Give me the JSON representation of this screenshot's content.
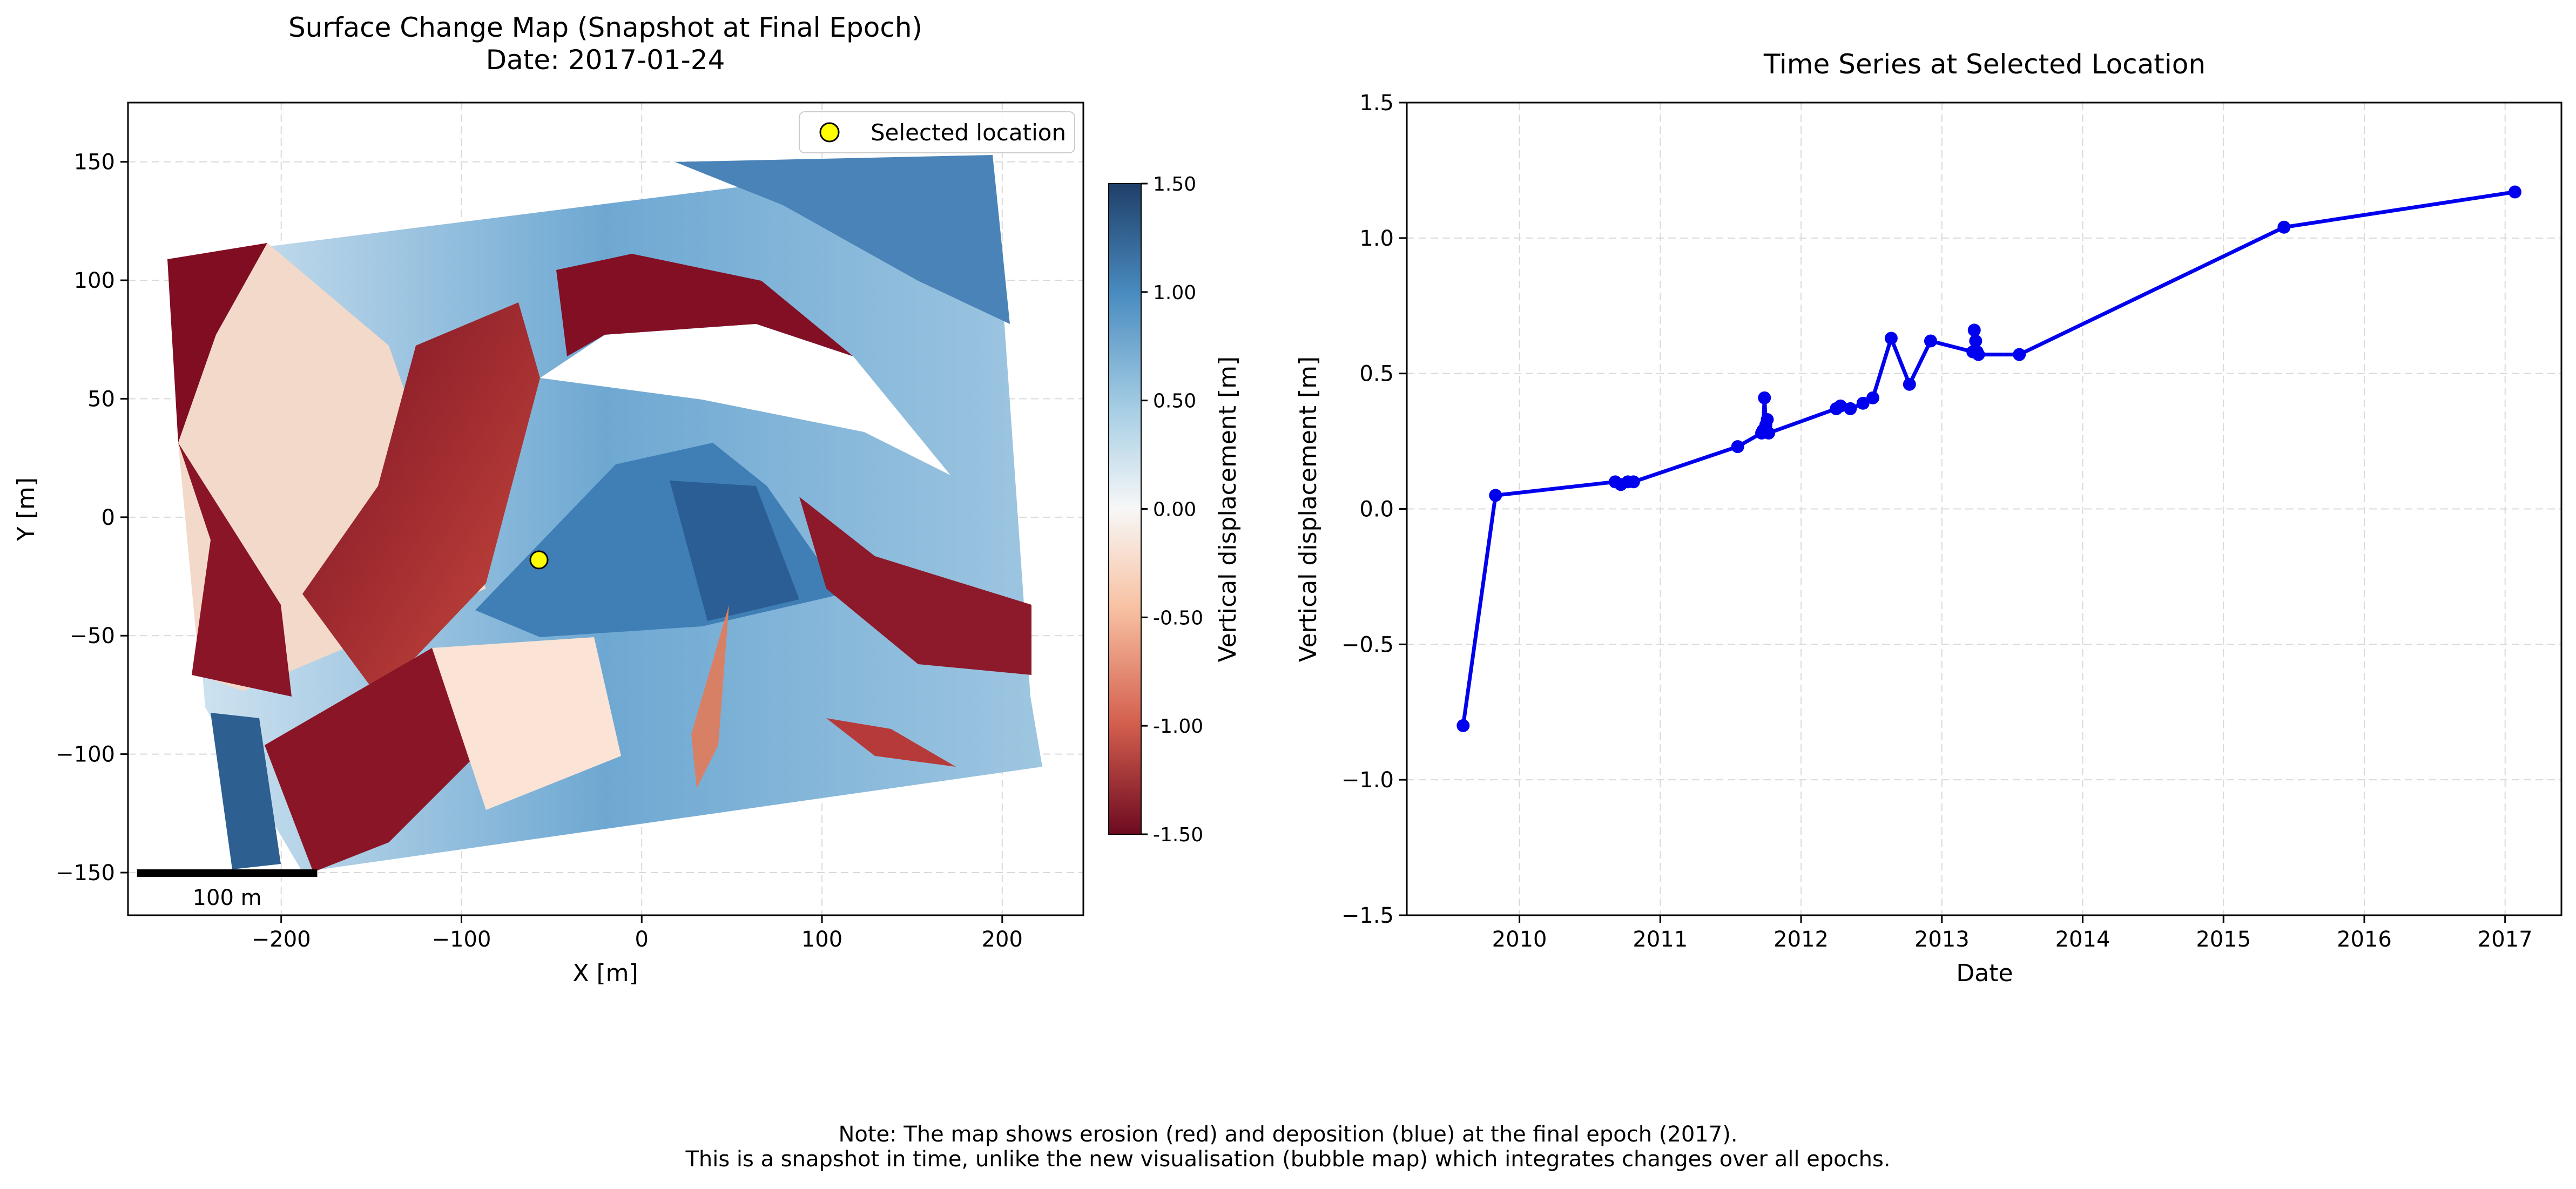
{
  "chart_data": [
    {
      "type": "heatmap",
      "title": "Surface Change Map (Snapshot at Final Epoch)",
      "subtitle": "Date: 2017-01-24",
      "xlabel": "X [m]",
      "ylabel": "Y [m]",
      "xlim": [
        -285,
        245
      ],
      "ylim": [
        -168,
        175
      ],
      "xticks": [
        -200,
        -100,
        0,
        100,
        200
      ],
      "yticks": [
        -150,
        -100,
        -50,
        0,
        50,
        100,
        150
      ],
      "xtick_labels": [
        "−200",
        "−100",
        "0",
        "100",
        "200"
      ],
      "ytick_labels": [
        "−150",
        "−100",
        "−50",
        "0",
        "50",
        "100",
        "150"
      ],
      "grid": true,
      "colorbar": {
        "label": "Vertical displacement [m]",
        "min": -1.5,
        "max": 1.5,
        "ticks": [
          1.5,
          1.0,
          0.5,
          0.0,
          -0.5,
          -1.0,
          -1.5
        ],
        "tick_labels": [
          "1.50",
          "1.00",
          "0.50",
          "0.00",
          "-0.50",
          "-1.00",
          "-1.50"
        ],
        "colormap": "RdBu"
      },
      "selected_location": {
        "x": -57,
        "y": -18,
        "label": "Selected location",
        "color": "#ffff00"
      },
      "legend_position": "top-right",
      "scale_bar": {
        "length": 100,
        "label": "100 m"
      }
    },
    {
      "type": "line",
      "title": "Time Series at Selected Location",
      "xlabel": "Date",
      "ylabel": "Vertical displacement [m]",
      "xlim": [
        2009.2,
        2017.4
      ],
      "ylim": [
        -1.5,
        1.5
      ],
      "xticks": [
        2010,
        2011,
        2012,
        2013,
        2014,
        2015,
        2016,
        2017
      ],
      "xtick_labels": [
        "2010",
        "2011",
        "2012",
        "2013",
        "2014",
        "2015",
        "2016",
        "2017"
      ],
      "yticks": [
        -1.5,
        -1.0,
        -0.5,
        0.0,
        0.5,
        1.0,
        1.5
      ],
      "ytick_labels": [
        "−1.5",
        "−1.0",
        "−0.5",
        "0.0",
        "0.5",
        "1.0",
        "1.5"
      ],
      "grid": true,
      "color": "#0000ee",
      "x": [
        2009.6,
        2009.83,
        2010.68,
        2010.72,
        2010.77,
        2010.81,
        2011.55,
        2011.72,
        2011.73,
        2011.74,
        2011.75,
        2011.76,
        2011.77,
        2012.25,
        2012.28,
        2012.35,
        2012.44,
        2012.51,
        2012.64,
        2012.77,
        2012.92,
        2013.22,
        2013.23,
        2013.24,
        2013.25,
        2013.26,
        2013.55,
        2015.43,
        2017.07
      ],
      "y": [
        -0.8,
        0.05,
        0.1,
        0.09,
        0.1,
        0.1,
        0.23,
        0.28,
        0.29,
        0.41,
        0.31,
        0.33,
        0.28,
        0.37,
        0.38,
        0.37,
        0.39,
        0.41,
        0.63,
        0.46,
        0.62,
        0.58,
        0.66,
        0.62,
        0.58,
        0.57,
        0.57,
        1.04,
        1.17
      ]
    }
  ],
  "footer": {
    "line1": "Note: The map shows erosion (red) and deposition (blue) at the final epoch (2017).",
    "line2": "This is a snapshot in time, unlike the new visualisation (bubble map) which integrates changes over all epochs."
  }
}
